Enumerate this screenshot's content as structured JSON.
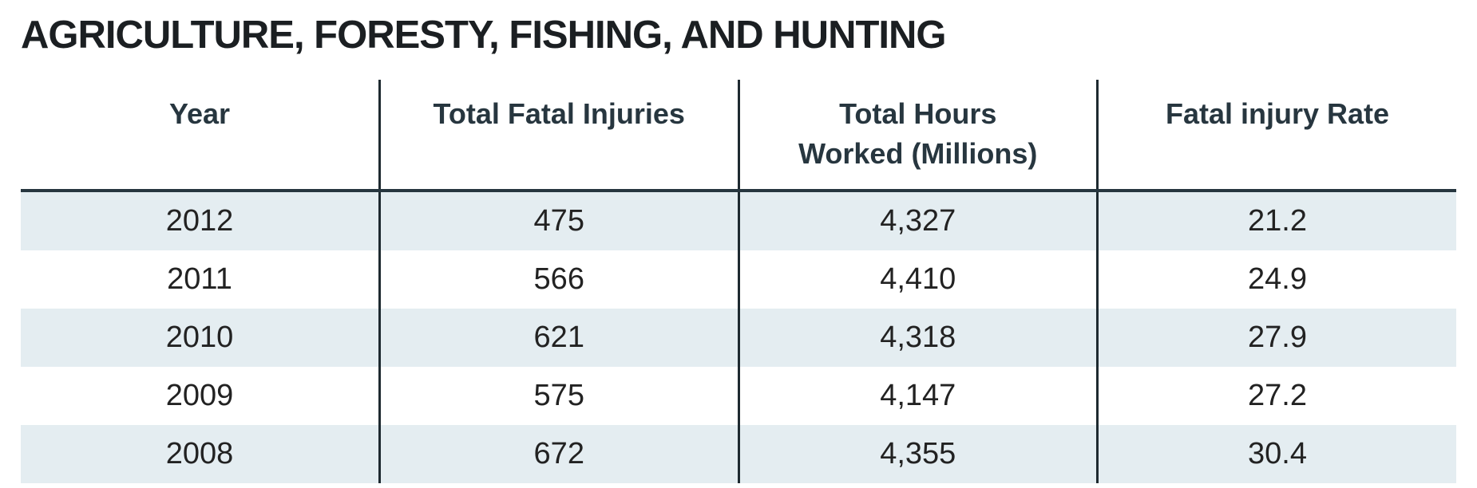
{
  "header": {
    "title": "AGRICULTURE, FORESTY, FISHING, AND HUNTING"
  },
  "table": {
    "columns": [
      "Year",
      "Total Fatal Injuries",
      "Total Hours Worked (Millions)",
      "Fatal injury Rate"
    ],
    "rows": [
      [
        "2012",
        "475",
        "4,327",
        "21.2"
      ],
      [
        "2011",
        "566",
        "4,410",
        "24.9"
      ],
      [
        "2010",
        "621",
        "4,318",
        "27.9"
      ],
      [
        "2009",
        "575",
        "4,147",
        "27.2"
      ],
      [
        "2008",
        "672",
        "4,355",
        "30.4"
      ]
    ]
  }
}
